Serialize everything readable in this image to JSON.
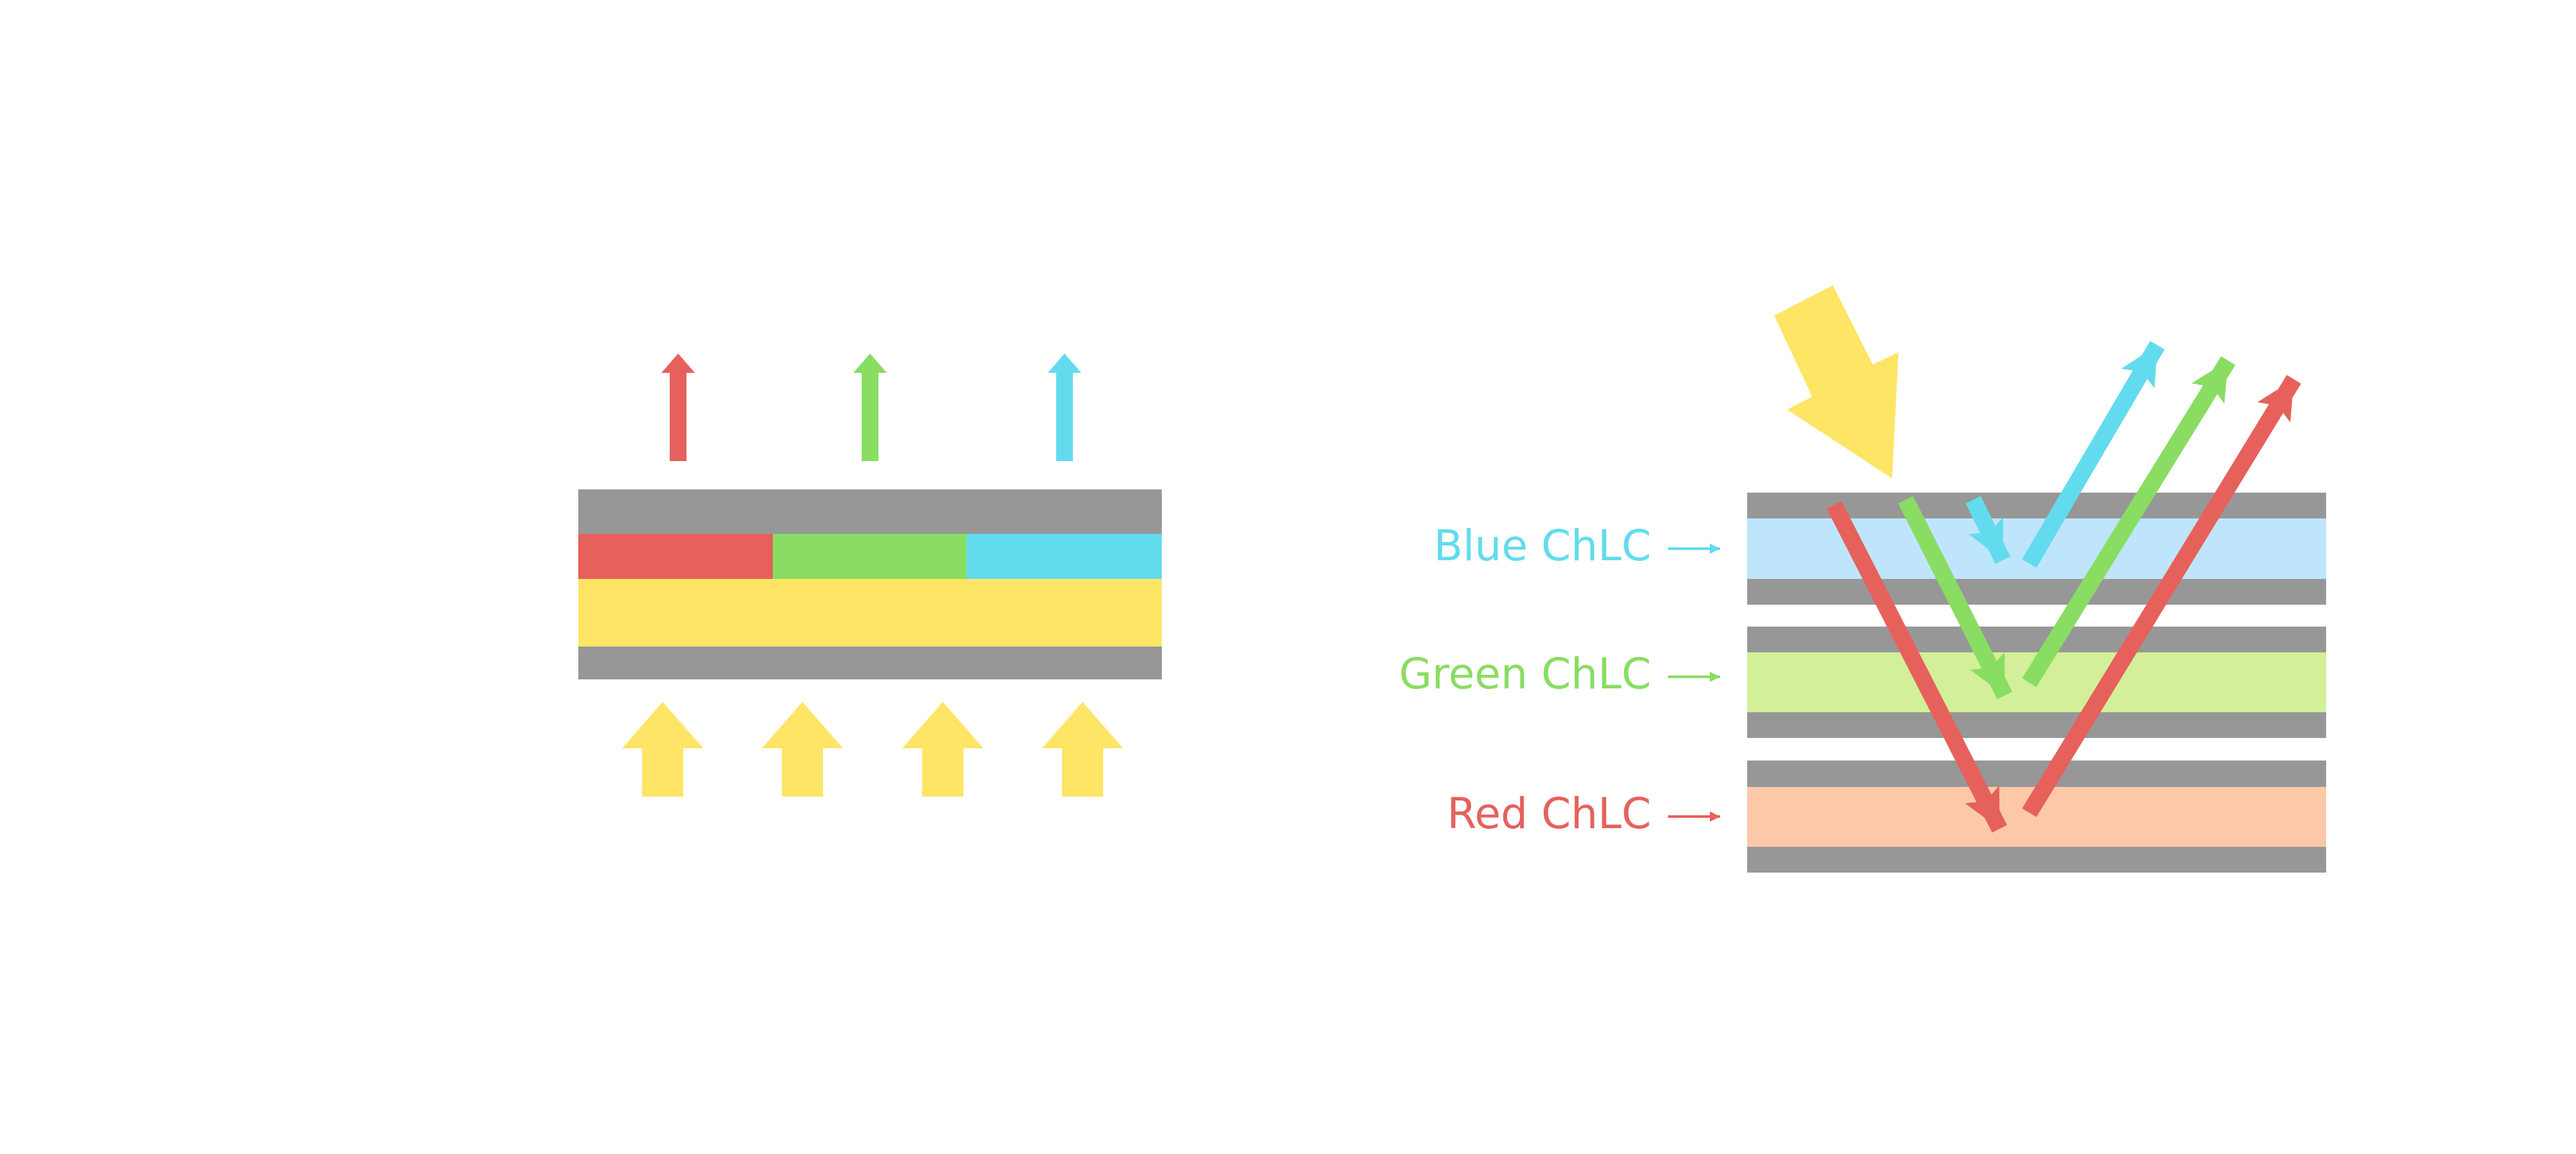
{
  "colors": {
    "gray": "#979797",
    "red": "#E6615C",
    "green": "#89DD62",
    "cyan": "#63DBEE",
    "yellow": "#FEE566",
    "light_blue": "#BEE5FB",
    "light_green": "#D3EF99",
    "peach": "#FDC8A8"
  },
  "right_diagram": {
    "labels": {
      "blue": "Blue ChLC",
      "green": "Green ChLC",
      "red": "Red ChLC"
    }
  }
}
